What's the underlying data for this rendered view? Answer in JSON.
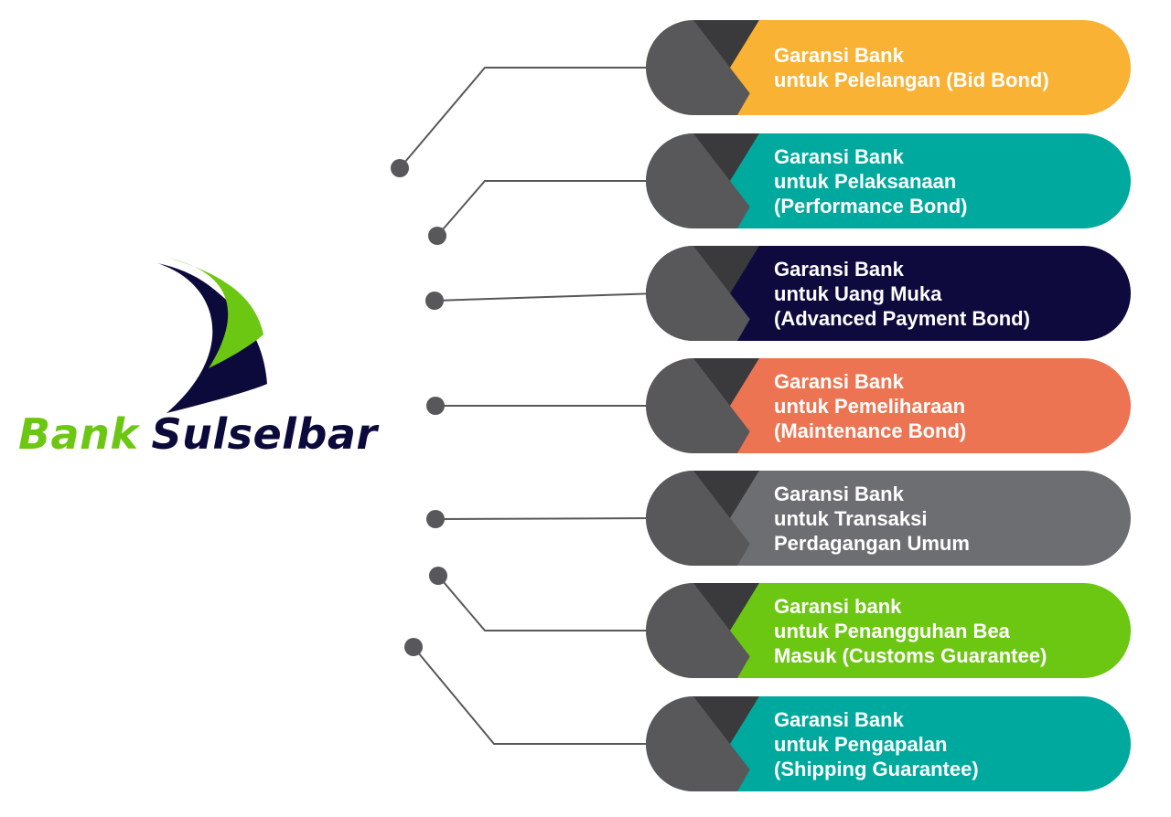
{
  "brand": {
    "name_part1": "Bank",
    "name_part2": "Sulselbar",
    "green": "#6cc712",
    "navy": "#0c0a3b"
  },
  "items": [
    {
      "lines": [
        "Garansi Bank",
        "untuk Pelelangan (Bid Bond)"
      ],
      "color": "#f9b233"
    },
    {
      "lines": [
        "Garansi Bank",
        "untuk Pelaksanaan",
        "(Performance Bond)"
      ],
      "color": "#00a99d"
    },
    {
      "lines": [
        "Garansi Bank",
        "untuk Uang Muka",
        "(Advanced Payment Bond)"
      ],
      "color": "#0e0a3e"
    },
    {
      "lines": [
        "Garansi Bank",
        "untuk Pemeliharaan",
        "(Maintenance Bond)"
      ],
      "color": "#ed7452"
    },
    {
      "lines": [
        "Garansi Bank",
        "untuk Transaksi",
        "Perdagangan Umum"
      ],
      "color": "#6d6e71"
    },
    {
      "lines": [
        "Garansi bank",
        "untuk Penangguhan Bea",
        "Masuk (Customs Guarantee)"
      ],
      "color": "#6cc712"
    },
    {
      "lines": [
        "Garansi Bank",
        "untuk Pengapalan",
        "(Shipping Guarantee)"
      ],
      "color": "#00a99d"
    }
  ],
  "connector_color": "#58585a"
}
